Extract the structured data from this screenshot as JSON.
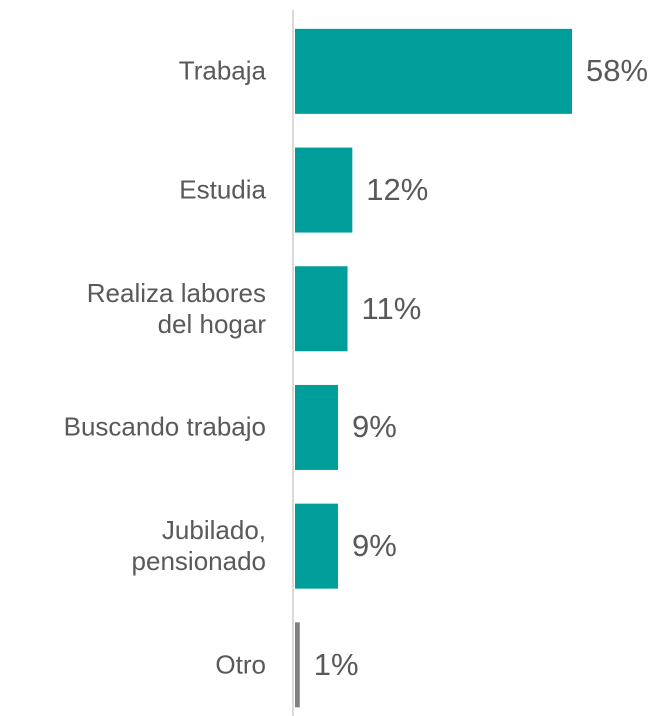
{
  "chart_data": {
    "type": "bar",
    "orientation": "horizontal",
    "categories": [
      "Trabaja",
      "Estudia",
      "Realiza labores\ndel hogar",
      "Buscando trabajo",
      "Jubilado,\npensionado",
      "Otro"
    ],
    "values": [
      58,
      12,
      11,
      9,
      9,
      1
    ],
    "value_labels": [
      "58%",
      "12%",
      "11%",
      "9%",
      "9%",
      "1%"
    ],
    "colors": [
      "#009e9a",
      "#009e9a",
      "#009e9a",
      "#009e9a",
      "#009e9a",
      "#7f7f7f"
    ]
  }
}
